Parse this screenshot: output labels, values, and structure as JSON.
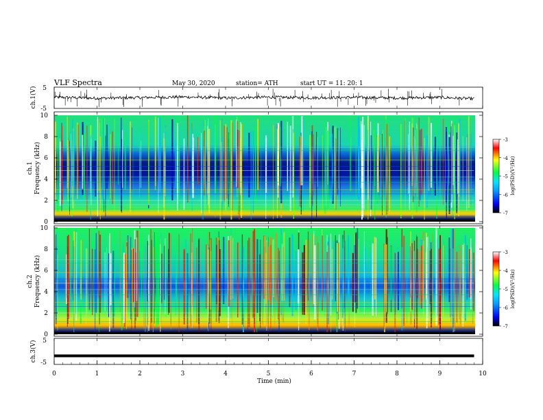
{
  "header": {
    "title": "VLF  Spectra",
    "date": "May 30, 2020",
    "station": "station= ATH",
    "start": "start  UT  =     11: 20: 1"
  },
  "colorbar": {
    "label": "log(PSD)(V²/Hz)",
    "ticks": [
      "-3",
      "-4",
      "-5",
      "-6",
      "-7"
    ],
    "range": [
      -7,
      -3
    ],
    "colors": [
      "#000000",
      "#0000ff",
      "#00e5ff",
      "#00ff44",
      "#ffff00",
      "#ff0000",
      "#ffffff"
    ]
  },
  "chart_data": [
    {
      "type": "line",
      "panel": "ch1",
      "ylabel": "ch.1(V)",
      "ylim": [
        -5,
        5
      ],
      "ytick_labels": [
        "5",
        "-5"
      ],
      "x": [
        0,
        1,
        2,
        3,
        4,
        5,
        6,
        7,
        8,
        9,
        9.8
      ],
      "y": [
        0.3,
        -0.2,
        0.1,
        0.4,
        -0.1,
        0.3,
        0.0,
        0.2,
        -0.1,
        0.2,
        -0.5
      ],
      "note_spikes": "numerous narrow vertical spikes throughout"
    },
    {
      "type": "heatmap",
      "panel": "ch1-spectrogram",
      "ylabel": "ch.1\nFrequency (kHz)",
      "ylim": [
        0,
        10
      ],
      "ytick_labels": [
        "0",
        "2",
        "4",
        "6",
        "8",
        "10"
      ],
      "xlim": [
        0,
        9.8
      ],
      "value_label": "log(PSD)(V²/Hz)",
      "zlim": [
        -7,
        -3
      ]
    },
    {
      "type": "heatmap",
      "panel": "ch2-spectrogram",
      "ylabel": "ch.2\nFrequency (kHz)",
      "ylim": [
        0,
        10
      ],
      "ytick_labels": [
        "0",
        "2",
        "4",
        "6",
        "8",
        "10"
      ],
      "xlim": [
        0,
        9.8
      ],
      "value_label": "log(PSD)(V²/Hz)",
      "zlim": [
        -7,
        -3
      ]
    },
    {
      "type": "line",
      "panel": "ch3",
      "ylabel": "ch.3(V)",
      "ylim": [
        -5,
        5
      ],
      "ytick_labels": [
        "5",
        "-5"
      ],
      "x": [
        0,
        9.8
      ],
      "y": [
        -1.7,
        -1.7
      ]
    }
  ],
  "xaxis": {
    "label": "Time  (min)",
    "range": [
      0,
      10
    ],
    "ticks": [
      "0",
      "1",
      "2",
      "3",
      "4",
      "5",
      "6",
      "7",
      "8",
      "9",
      "10"
    ]
  }
}
